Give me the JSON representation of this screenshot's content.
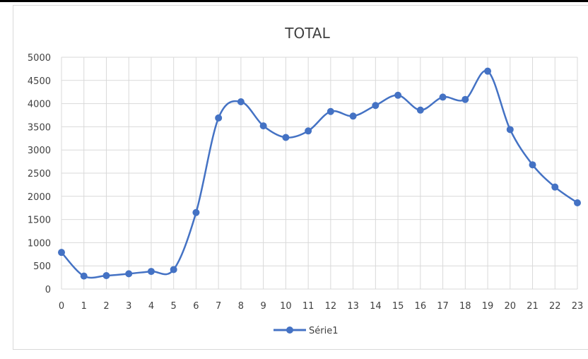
{
  "chart_data": {
    "type": "line",
    "title": "TOTAL",
    "xlabel": "",
    "ylabel": "",
    "categories": [
      "0",
      "1",
      "2",
      "3",
      "4",
      "5",
      "6",
      "7",
      "8",
      "9",
      "10",
      "11",
      "12",
      "13",
      "14",
      "15",
      "16",
      "17",
      "18",
      "19",
      "20",
      "21",
      "22",
      "23"
    ],
    "series": [
      {
        "name": "Série1",
        "color": "#4472c4",
        "values": [
          790,
          280,
          290,
          330,
          380,
          420,
          1650,
          3690,
          4040,
          3520,
          3270,
          3410,
          3830,
          3730,
          3960,
          4180,
          3860,
          4140,
          4090,
          4700,
          3440,
          2680,
          2200,
          1860
        ]
      }
    ],
    "ylim": [
      0,
      5000
    ],
    "yticks": [
      "0",
      "500",
      "1000",
      "1500",
      "2000",
      "2500",
      "3000",
      "3500",
      "4000",
      "4500",
      "5000"
    ],
    "smooth": true,
    "grid": true,
    "legend_position": "bottom"
  }
}
